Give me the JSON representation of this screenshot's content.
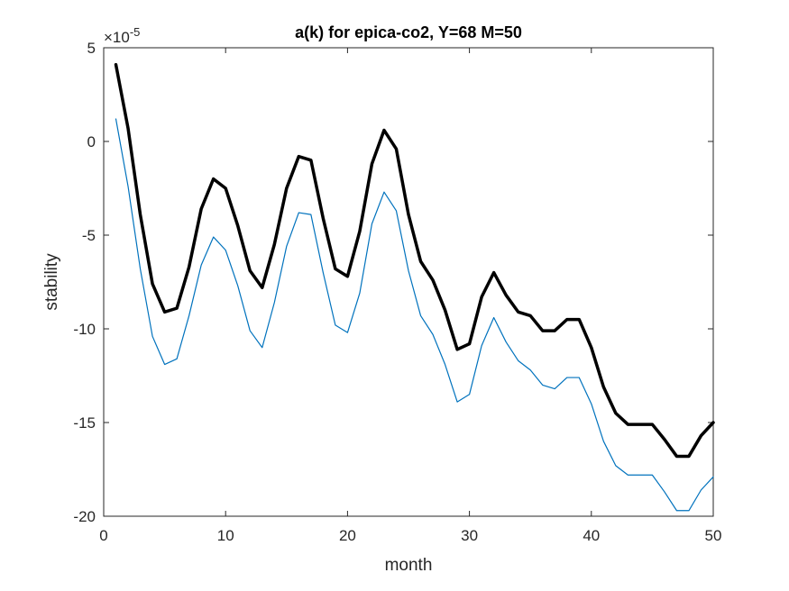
{
  "chart_data": {
    "type": "line",
    "title": "a(k) for epica-co2, Y=68 M=50",
    "xlabel": "month",
    "ylabel": "stability",
    "y_scale_factor": {
      "base": "×10",
      "exponent": "-5"
    },
    "xlim": [
      0,
      50
    ],
    "ylim": [
      -20,
      5
    ],
    "xticks": [
      0,
      10,
      20,
      30,
      40,
      50
    ],
    "yticks": [
      -20,
      -15,
      -10,
      -5,
      0,
      5
    ],
    "grid": false,
    "x": [
      1,
      2,
      3,
      4,
      5,
      6,
      7,
      8,
      9,
      10,
      11,
      12,
      13,
      14,
      15,
      16,
      17,
      18,
      19,
      20,
      21,
      22,
      23,
      24,
      25,
      26,
      27,
      28,
      29,
      30,
      31,
      32,
      33,
      34,
      35,
      36,
      37,
      38,
      39,
      40,
      41,
      42,
      43,
      44,
      45,
      46,
      47,
      48,
      49,
      50
    ],
    "series": [
      {
        "color": "#000000",
        "width": "thick",
        "values": [
          4.1,
          0.7,
          -3.9,
          -7.6,
          -9.1,
          -8.9,
          -6.7,
          -3.6,
          -2.0,
          -2.5,
          -4.5,
          -6.9,
          -7.8,
          -5.5,
          -2.5,
          -0.8,
          -1.0,
          -4.1,
          -6.8,
          -7.2,
          -4.8,
          -1.2,
          0.6,
          -0.4,
          -3.9,
          -6.4,
          -7.4,
          -9.0,
          -11.1,
          -10.8,
          -8.3,
          -7.0,
          -8.2,
          -9.1,
          -9.3,
          -10.1,
          -10.1,
          -9.5,
          -9.5,
          -11.0,
          -13.1,
          -14.5,
          -15.1,
          -15.1,
          -15.1,
          -15.9,
          -16.8,
          -16.8,
          -15.7,
          -15.0
        ]
      },
      {
        "color": "#0072BD",
        "width": "thin",
        "values": [
          1.2,
          -2.4,
          -6.8,
          -10.4,
          -11.9,
          -11.6,
          -9.3,
          -6.6,
          -5.1,
          -5.8,
          -7.7,
          -10.1,
          -11.0,
          -8.6,
          -5.6,
          -3.8,
          -3.9,
          -7.0,
          -9.8,
          -10.2,
          -8.1,
          -4.4,
          -2.7,
          -3.7,
          -6.9,
          -9.3,
          -10.3,
          -11.9,
          -13.9,
          -13.5,
          -10.9,
          -9.4,
          -10.7,
          -11.7,
          -12.2,
          -13.0,
          -13.2,
          -12.6,
          -12.6,
          -14.0,
          -16.0,
          -17.3,
          -17.8,
          -17.8,
          -17.8,
          -18.7,
          -19.7,
          -19.7,
          -18.6,
          -17.9
        ]
      }
    ]
  }
}
